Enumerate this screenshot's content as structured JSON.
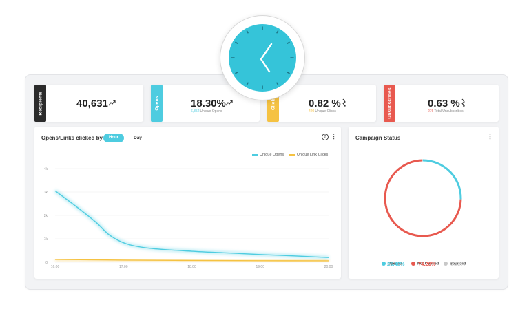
{
  "stats": [
    {
      "label": "Recipients",
      "value": "40,631",
      "trend_icon": "trend-up-icon",
      "color": "#2b2b2b"
    },
    {
      "label": "Opens",
      "value": "18.30%",
      "highlight": "6,852",
      "sub_text": "Unique Opens",
      "highlight_color": "#4ecce0",
      "trend_icon": "trend-up-icon",
      "color": "#4ecce0"
    },
    {
      "label": "Clicks",
      "value": "0.82 %",
      "highlight": "420",
      "sub_text": "Unique Clicks",
      "highlight_color": "#f5c242",
      "trend_icon": "trend-down-icon",
      "color": "#f5c242"
    },
    {
      "label": "Unsubscribes",
      "value": "0.63 %",
      "highlight": "276",
      "sub_text": "Total Unsubscribes",
      "highlight_color": "#e8594f",
      "trend_icon": "trend-down-icon",
      "color": "#e8594f"
    }
  ],
  "opens_chart": {
    "title": "Opens/Links clicked by",
    "tabs": [
      "Hour",
      "Day"
    ],
    "active_tab": "Hour"
  },
  "status": {
    "title": "Campaign Status",
    "items": [
      {
        "label": "Opened",
        "value": "25.48%",
        "color": "#4ecce0"
      },
      {
        "label": "Not Opened",
        "value": "74.20%",
        "color": "#e8594f"
      },
      {
        "label": "Bounced",
        "value": "0.32%",
        "color": "#c8c8c8"
      }
    ]
  },
  "chart_data": [
    {
      "type": "line",
      "x": [
        "16:00",
        "17:00",
        "18:00",
        "19:00",
        "20:00"
      ],
      "series": [
        {
          "name": "Unique Opens",
          "color": "#4ecce0",
          "points": [
            [
              16,
              3050
            ],
            [
              16.3,
              2400
            ],
            [
              16.6,
              1700
            ],
            [
              16.8,
              1150
            ],
            [
              17.05,
              780
            ],
            [
              17.4,
              590
            ],
            [
              18,
              470
            ],
            [
              18.5,
              400
            ],
            [
              19,
              330
            ],
            [
              19.5,
              270
            ],
            [
              20,
              200
            ]
          ]
        },
        {
          "name": "Unique Link Clicks",
          "color": "#f5c242",
          "points": [
            [
              16,
              120
            ],
            [
              17,
              90
            ],
            [
              18,
              75
            ],
            [
              19,
              65
            ],
            [
              20,
              60
            ]
          ]
        }
      ],
      "yticks": [
        "0",
        "1k",
        "2k",
        "3k",
        "4k"
      ],
      "ylim": [
        0,
        4000
      ],
      "legend": "top-right"
    },
    {
      "type": "pie",
      "categories": [
        "Opened",
        "Not Opened",
        "Bounced"
      ],
      "values": [
        25.48,
        74.2,
        0.32
      ],
      "colors": [
        "#4ecce0",
        "#e8594f",
        "#c8c8c8"
      ]
    }
  ]
}
